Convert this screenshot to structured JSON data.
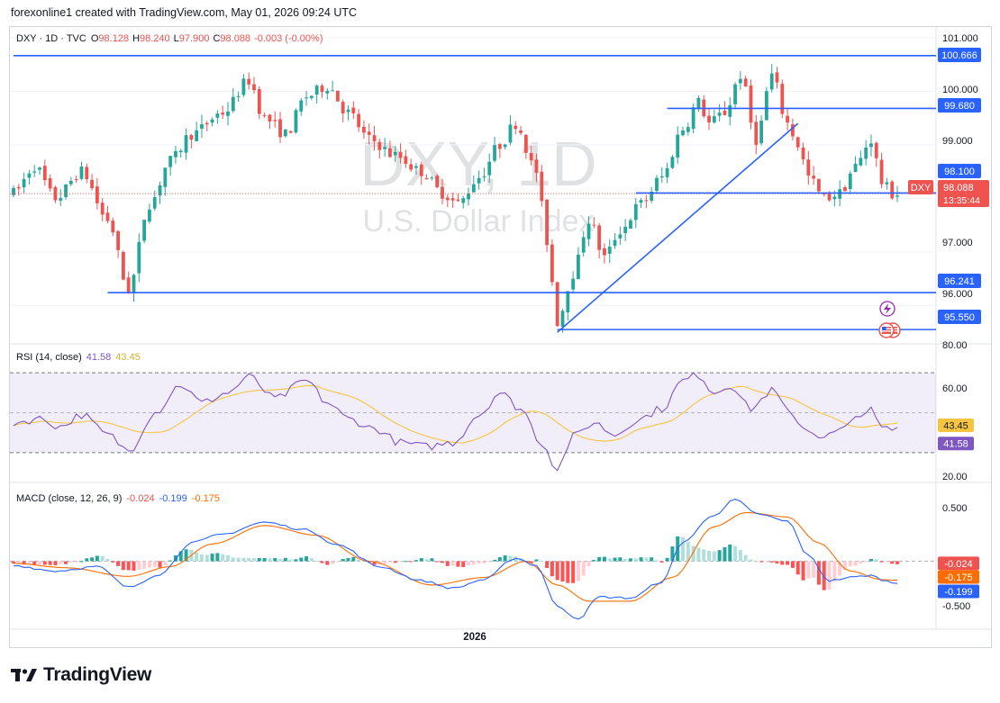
{
  "header": {
    "created_by": "forexonline1 created with TradingView.com, May 01, 2026 09:24 UTC"
  },
  "legend": {
    "symbol": "DXY · 1D · TVC",
    "o_label": "O",
    "o_value": "98.128",
    "h_label": "H",
    "h_value": "98.240",
    "l_label": "L",
    "l_value": "97.900",
    "c_label": "C",
    "c_value": "98.088",
    "change": "-0.003 (-0.00%)"
  },
  "watermark": {
    "line1": "DXY, 1D",
    "line2": "U.S. Dollar Index"
  },
  "rsi": {
    "label": "RSI (14, close)",
    "value": "41.58",
    "ma_value": "43.45"
  },
  "macd": {
    "label": "MACD (close, 12, 26, 9)",
    "hist": "-0.024",
    "macd": "-0.199",
    "signal": "-0.175"
  },
  "colors": {
    "up": "#26a69a",
    "down": "#ef5350",
    "level_line": "#2962ff",
    "rsi_line": "#7e57c2",
    "rsi_ma": "#f5c542",
    "macd_line": "#2962ff",
    "signal_line": "#ff6d00",
    "hist_up_strong": "#26a69a",
    "hist_up_weak": "#b2dfdb",
    "hist_down_strong": "#ff5252",
    "hist_down_weak": "#ffcdd2"
  },
  "price_axis": {
    "ticks": [
      "101.000",
      "100.000",
      "99.000",
      "97.000",
      "96.000"
    ]
  },
  "rsi_axis": {
    "ticks": [
      "80.00",
      "60.00",
      "20.00"
    ]
  },
  "macd_axis": {
    "ticks": [
      "0.500",
      "-0.500"
    ]
  },
  "time_axis": {
    "ticks": [
      "2026"
    ]
  },
  "price_labels": {
    "l100666": "100.666",
    "l99680": "99.680",
    "l98100": "98.100",
    "current_symbol": "DXY",
    "current": "98.088",
    "countdown": "13:35:44",
    "l96241": "96.241",
    "l95550": "95.550"
  },
  "brand": {
    "name": "TradingView"
  },
  "chart_data": {
    "type": "candlestick",
    "price_levels": [
      100.666,
      99.68,
      98.1,
      96.241,
      95.55
    ],
    "current_price": 98.088,
    "price_range": [
      95.3,
      101.2
    ],
    "rsi_range": [
      16,
      84
    ],
    "rsi_bands": [
      70,
      30
    ],
    "macd_range": [
      -0.62,
      0.72
    ],
    "anchors": [
      [
        0,
        98.1
      ],
      [
        4,
        98.6
      ],
      [
        8,
        98.0
      ],
      [
        13,
        98.5
      ],
      [
        18,
        97.6
      ],
      [
        22,
        96.3
      ],
      [
        26,
        97.9
      ],
      [
        30,
        98.7
      ],
      [
        34,
        99.2
      ],
      [
        40,
        99.6
      ],
      [
        45,
        100.2
      ],
      [
        48,
        99.5
      ],
      [
        52,
        99.2
      ],
      [
        56,
        99.9
      ],
      [
        60,
        100.1
      ],
      [
        64,
        99.6
      ],
      [
        68,
        99.1
      ],
      [
        73,
        98.8
      ],
      [
        78,
        98.5
      ],
      [
        82,
        98.1
      ],
      [
        85,
        97.9
      ],
      [
        89,
        98.4
      ],
      [
        93,
        99.0
      ],
      [
        96,
        99.4
      ],
      [
        100,
        98.5
      ],
      [
        102,
        97.2
      ],
      [
        104,
        95.7
      ],
      [
        107,
        96.6
      ],
      [
        110,
        97.6
      ],
      [
        113,
        96.9
      ],
      [
        116,
        97.4
      ],
      [
        120,
        97.9
      ],
      [
        124,
        98.4
      ],
      [
        128,
        99.3
      ],
      [
        131,
        99.8
      ],
      [
        133,
        99.4
      ],
      [
        136,
        99.6
      ],
      [
        139,
        100.3
      ],
      [
        142,
        99.1
      ],
      [
        145,
        100.3
      ],
      [
        148,
        99.4
      ],
      [
        150,
        99.0
      ],
      [
        152,
        98.4
      ],
      [
        155,
        98.0
      ],
      [
        158,
        98.1
      ],
      [
        161,
        98.6
      ],
      [
        164,
        99.1
      ],
      [
        166,
        98.3
      ],
      [
        168,
        98.088
      ]
    ],
    "rsi_anchors": [
      [
        0,
        45
      ],
      [
        5,
        47
      ],
      [
        9,
        43
      ],
      [
        13,
        49
      ],
      [
        18,
        39
      ],
      [
        22,
        31
      ],
      [
        27,
        50
      ],
      [
        32,
        64
      ],
      [
        36,
        55
      ],
      [
        41,
        60
      ],
      [
        45,
        68
      ],
      [
        50,
        57
      ],
      [
        56,
        66
      ],
      [
        60,
        55
      ],
      [
        64,
        47
      ],
      [
        69,
        42
      ],
      [
        74,
        35
      ],
      [
        79,
        33
      ],
      [
        84,
        35
      ],
      [
        89,
        49
      ],
      [
        93,
        60
      ],
      [
        97,
        52
      ],
      [
        101,
        35
      ],
      [
        104,
        22
      ],
      [
        107,
        38
      ],
      [
        111,
        45
      ],
      [
        115,
        39
      ],
      [
        119,
        46
      ],
      [
        124,
        52
      ],
      [
        128,
        66
      ],
      [
        131,
        69
      ],
      [
        134,
        60
      ],
      [
        137,
        64
      ],
      [
        141,
        52
      ],
      [
        145,
        61
      ],
      [
        149,
        48
      ],
      [
        152,
        41
      ],
      [
        155,
        38
      ],
      [
        159,
        42
      ],
      [
        162,
        50
      ],
      [
        164,
        51
      ],
      [
        166,
        42
      ],
      [
        168,
        41.58
      ]
    ],
    "macd_anchors": [
      [
        0,
        -0.04
      ],
      [
        8,
        -0.09
      ],
      [
        16,
        -0.05
      ],
      [
        22,
        -0.24
      ],
      [
        28,
        -0.12
      ],
      [
        34,
        0.17
      ],
      [
        40,
        0.25
      ],
      [
        48,
        0.36
      ],
      [
        56,
        0.29
      ],
      [
        62,
        0.15
      ],
      [
        70,
        -0.05
      ],
      [
        78,
        -0.18
      ],
      [
        84,
        -0.25
      ],
      [
        90,
        -0.17
      ],
      [
        96,
        0.03
      ],
      [
        100,
        -0.04
      ],
      [
        104,
        -0.42
      ],
      [
        108,
        -0.53
      ],
      [
        112,
        -0.33
      ],
      [
        118,
        -0.34
      ],
      [
        124,
        -0.19
      ],
      [
        128,
        0.18
      ],
      [
        134,
        0.43
      ],
      [
        138,
        0.57
      ],
      [
        142,
        0.44
      ],
      [
        148,
        0.37
      ],
      [
        152,
        0.05
      ],
      [
        156,
        -0.18
      ],
      [
        160,
        -0.15
      ],
      [
        164,
        -0.13
      ],
      [
        166,
        -0.17
      ],
      [
        168,
        -0.199
      ]
    ],
    "signal_anchors": [
      [
        0,
        -0.02
      ],
      [
        10,
        -0.06
      ],
      [
        22,
        -0.14
      ],
      [
        30,
        -0.05
      ],
      [
        38,
        0.16
      ],
      [
        48,
        0.33
      ],
      [
        58,
        0.24
      ],
      [
        68,
        0.0
      ],
      [
        80,
        -0.22
      ],
      [
        90,
        -0.15
      ],
      [
        98,
        0.0
      ],
      [
        104,
        -0.22
      ],
      [
        110,
        -0.37
      ],
      [
        118,
        -0.37
      ],
      [
        126,
        -0.15
      ],
      [
        134,
        0.32
      ],
      [
        140,
        0.45
      ],
      [
        148,
        0.41
      ],
      [
        154,
        0.17
      ],
      [
        160,
        -0.09
      ],
      [
        166,
        -0.17
      ],
      [
        168,
        -0.175
      ]
    ],
    "trendlines": [
      {
        "from": [
          104,
          95.5
        ],
        "to": [
          150,
          99.4
        ]
      }
    ],
    "levels": [
      {
        "price": 100.666,
        "from_index": 0,
        "to_index": 168
      },
      {
        "price": 99.68,
        "from_index": 125,
        "to_index": 168
      },
      {
        "price": 98.1,
        "from_index": 119,
        "to_index": 168
      },
      {
        "price": 96.241,
        "from_index": 18,
        "to_index": 168
      },
      {
        "price": 95.55,
        "from_index": 104,
        "to_index": 168
      }
    ]
  }
}
